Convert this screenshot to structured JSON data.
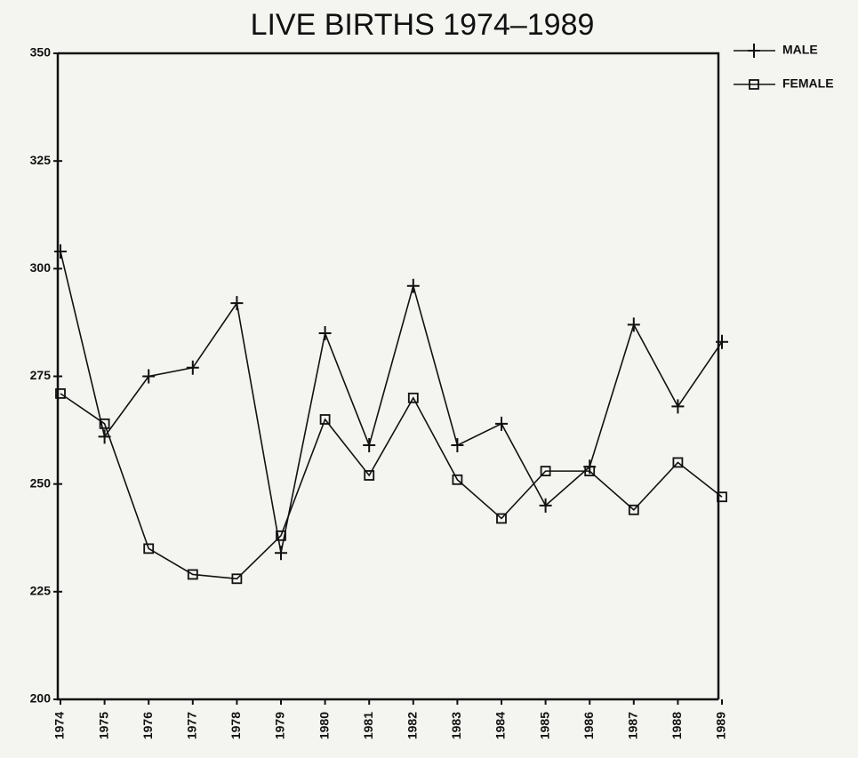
{
  "chart_data": {
    "type": "line",
    "title": "LIVE BIRTHS 1974–1989",
    "categories": [
      "1974",
      "1975",
      "1976",
      "1977",
      "1978",
      "1979",
      "1980",
      "1981",
      "1982",
      "1983",
      "1984",
      "1985",
      "1986",
      "1987",
      "1988",
      "1989"
    ],
    "series": [
      {
        "name": "MALE",
        "color": "#111111",
        "marker": "plus",
        "values": [
          304,
          261,
          275,
          277,
          292,
          234,
          285,
          259,
          296,
          259,
          264,
          245,
          254,
          287,
          268,
          283
        ]
      },
      {
        "name": "FEMALE",
        "color": "#111111",
        "marker": "square",
        "values": [
          271,
          264,
          235,
          229,
          228,
          238,
          265,
          252,
          270,
          251,
          242,
          253,
          253,
          244,
          255,
          247
        ]
      }
    ],
    "ylim": [
      200,
      350
    ],
    "yticks": [
      200,
      225,
      250,
      275,
      300,
      325,
      350
    ],
    "legend": "upper right"
  }
}
